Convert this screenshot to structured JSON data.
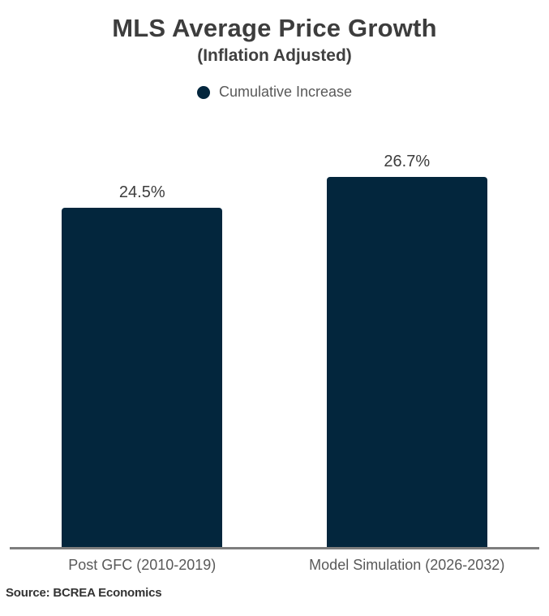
{
  "chart_data": {
    "type": "bar",
    "title": "MLS Average Price Growth",
    "subtitle": "(Inflation Adjusted)",
    "legend": {
      "label": "Cumulative Increase",
      "position": "top",
      "marker": "circle-icon"
    },
    "categories": [
      "Post GFC (2010-2019)",
      "Model Simulation (2026-2032)"
    ],
    "values": [
      24.5,
      26.7
    ],
    "value_labels": [
      "24.5%",
      "26.7%"
    ],
    "ylabel": "",
    "xlabel": "",
    "ylim": [
      0,
      28
    ],
    "grid": false,
    "axis_line_color": "#7d7d7d",
    "bar_color": "#03263d"
  },
  "source": {
    "label": "Source: BCREA Economics"
  },
  "colors": {
    "bar": "#03263d",
    "title_text": "#3d3d3d",
    "label_text": "#595959",
    "background": "#ffffff"
  }
}
